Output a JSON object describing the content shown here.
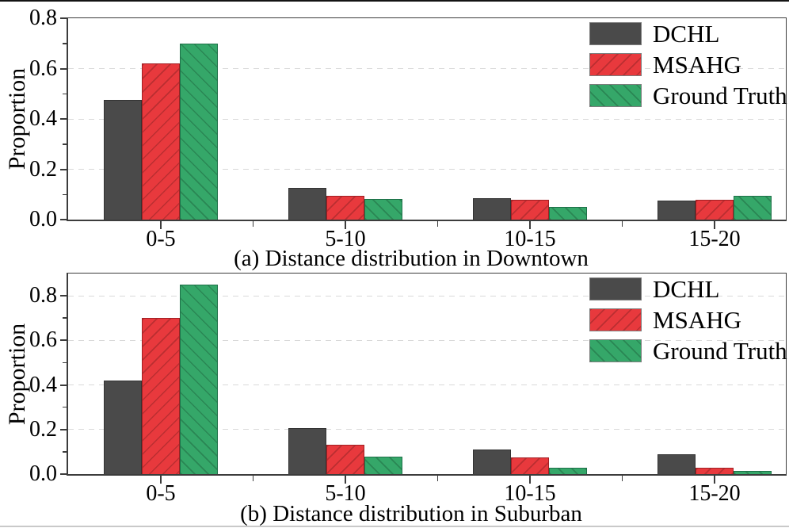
{
  "figure": {
    "top_rule": true,
    "bottom_rule": true,
    "axis_color": "#3c3c3c",
    "grid_color": "#d9d9d9",
    "legend": [
      {
        "label": "DCHL",
        "fill": "#4a4a4a",
        "edge": "#333333",
        "hatch": "none"
      },
      {
        "label": "MSAHG",
        "fill": "#e8393d",
        "edge": "#a21f23",
        "hatch": "forward-slash"
      },
      {
        "label": "Ground Truth",
        "fill": "#35a769",
        "edge": "#1e7048",
        "hatch": "back-slash"
      }
    ]
  },
  "chart_data": [
    {
      "type": "bar",
      "caption": "(a) Distance distribution in Downtown",
      "ylabel": "Proportion",
      "categories": [
        "0-5",
        "5-10",
        "10-15",
        "15-20"
      ],
      "series": [
        {
          "name": "DCHL",
          "values": [
            0.475,
            0.125,
            0.085,
            0.075
          ]
        },
        {
          "name": "MSAHG",
          "values": [
            0.62,
            0.095,
            0.08,
            0.078
          ]
        },
        {
          "name": "Ground Truth",
          "values": [
            0.7,
            0.082,
            0.05,
            0.095
          ]
        }
      ],
      "ylim": [
        0,
        0.8
      ],
      "yticks": [
        0.0,
        0.2,
        0.4,
        0.6,
        0.8
      ],
      "ytick_labels": [
        "0.0",
        "0.2",
        "0.4",
        "0.6",
        "0.8"
      ],
      "yticks_minor": [
        0.1,
        0.3,
        0.5,
        0.7
      ],
      "gridlines": [
        0.2,
        0.4,
        0.6
      ],
      "grid": "dashed-horizontal",
      "legend_position": "top-right"
    },
    {
      "type": "bar",
      "caption": "(b) Distance distribution in Suburban",
      "ylabel": "Proportion",
      "categories": [
        "0-5",
        "5-10",
        "10-15",
        "15-20"
      ],
      "series": [
        {
          "name": "DCHL",
          "values": [
            0.42,
            0.205,
            0.11,
            0.09
          ]
        },
        {
          "name": "MSAHG",
          "values": [
            0.7,
            0.13,
            0.075,
            0.03
          ]
        },
        {
          "name": "Ground Truth",
          "values": [
            0.85,
            0.08,
            0.03,
            0.013
          ]
        }
      ],
      "ylim": [
        0,
        0.9
      ],
      "yticks": [
        0.0,
        0.2,
        0.4,
        0.6,
        0.8
      ],
      "ytick_labels": [
        "0.0",
        "0.2",
        "0.4",
        "0.6",
        "0.8"
      ],
      "yticks_minor": [
        0.1,
        0.3,
        0.5,
        0.7
      ],
      "gridlines": [
        0.2,
        0.4,
        0.6,
        0.8
      ],
      "grid": "dashed-horizontal",
      "legend_position": "top-right"
    }
  ]
}
